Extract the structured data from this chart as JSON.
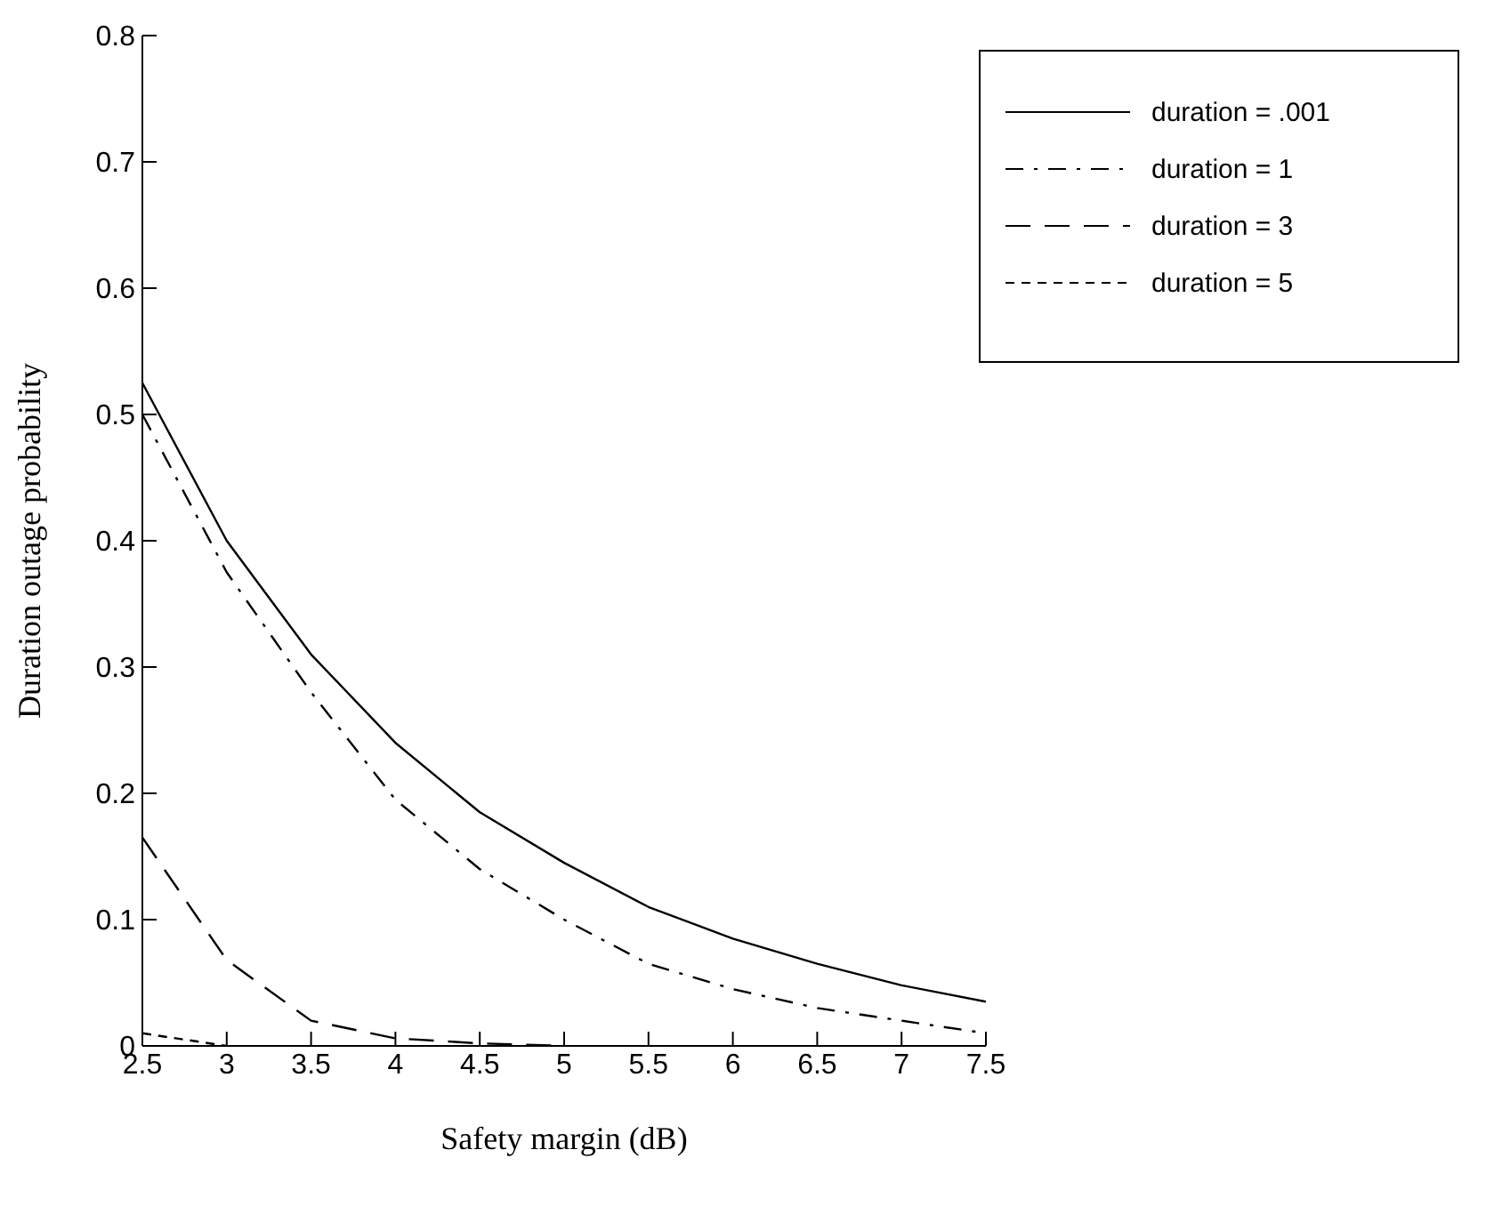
{
  "chart_data": {
    "type": "line",
    "xlabel": "Safety margin (dB)",
    "ylabel": "Duration outage probability",
    "x": [
      2.5,
      3,
      3.5,
      4,
      4.5,
      5,
      5.5,
      6,
      6.5,
      7,
      7.5
    ],
    "series": [
      {
        "name": "duration = .001",
        "color": "#000000",
        "line_style": "solid",
        "values": [
          0.525,
          0.4,
          0.31,
          0.24,
          0.185,
          0.145,
          0.11,
          0.085,
          0.065,
          0.048,
          0.035
        ]
      },
      {
        "name": "duration = 1",
        "color": "#000000",
        "line_style": "dashdot",
        "values": [
          0.5,
          0.375,
          0.28,
          0.195,
          0.14,
          0.1,
          0.065,
          0.045,
          0.03,
          0.02,
          0.01
        ]
      },
      {
        "name": "duration = 3",
        "color": "#000000",
        "line_style": "dashed",
        "values": [
          0.165,
          0.068,
          0.02,
          0.006,
          0.002,
          0,
          null,
          null,
          null,
          null,
          null
        ]
      },
      {
        "name": "duration = 5",
        "color": "#000000",
        "line_style": "dotted",
        "values": [
          0.01,
          0,
          null,
          null,
          null,
          null,
          null,
          null,
          null,
          null,
          null
        ]
      }
    ],
    "xlim": [
      2.5,
      7.5
    ],
    "xticks": [
      2.5,
      3,
      3.5,
      4,
      4.5,
      5,
      5.5,
      6,
      6.5,
      7,
      7.5
    ],
    "ylim": [
      0,
      0.8
    ],
    "yticks": [
      0,
      0.1,
      0.2,
      0.3,
      0.4,
      0.5,
      0.6,
      0.7,
      0.8
    ],
    "grid": false,
    "legend": "top right",
    "marker": "none"
  }
}
